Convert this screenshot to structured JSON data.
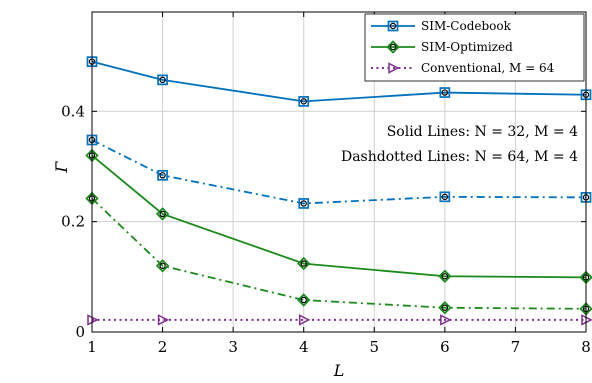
{
  "chart_data": {
    "type": "line",
    "xlabel": "L",
    "ylabel": "Γ̄",
    "xlim": [
      1,
      8
    ],
    "ylim": [
      0,
      0.58
    ],
    "xticks": [
      "1",
      "2",
      "3",
      "4",
      "5",
      "6",
      "7",
      "8"
    ],
    "yticks": [
      {
        "value": 0,
        "label": "0"
      },
      {
        "value": 0.2,
        "label": "0.2"
      },
      {
        "value": 0.4,
        "label": "0.4"
      }
    ],
    "grid": true,
    "legend_position": "top-right",
    "x": [
      1,
      2,
      4,
      6,
      8
    ],
    "series": [
      {
        "name": "SIM-Codebook",
        "legend_label": "SIM-Codebook",
        "color": "#0072BD",
        "marker": "square",
        "linestyle": "solid",
        "values": [
          0.49,
          0.457,
          0.418,
          0.434,
          0.43
        ]
      },
      {
        "name": "SIM-Codebook (N=64)",
        "legend_label": "",
        "color": "#0072BD",
        "marker": "square",
        "linestyle": "dashdot",
        "values": [
          0.348,
          0.284,
          0.233,
          0.245,
          0.244
        ]
      },
      {
        "name": "SIM-Optimized",
        "legend_label": "SIM-Optimized",
        "color": "#1B8A1B",
        "marker": "diamond",
        "linestyle": "solid",
        "values": [
          0.32,
          0.214,
          0.124,
          0.101,
          0.099
        ]
      },
      {
        "name": "SIM-Optimized (N=64)",
        "legend_label": "",
        "color": "#1B8A1B",
        "marker": "diamond",
        "linestyle": "dashdot",
        "values": [
          0.242,
          0.12,
          0.058,
          0.044,
          0.042
        ]
      },
      {
        "name": "Conventional",
        "legend_label": "Conventional, M = 64",
        "color": "#7E2F8E",
        "marker": "triangle-right",
        "linestyle": "dotted",
        "values": [
          0.022,
          0.022,
          0.022,
          0.022,
          0.022
        ]
      }
    ],
    "annotations": [
      "Solid Lines: N = 32, M = 4",
      "Dashdotted Lines: N = 64, M = 4"
    ]
  }
}
